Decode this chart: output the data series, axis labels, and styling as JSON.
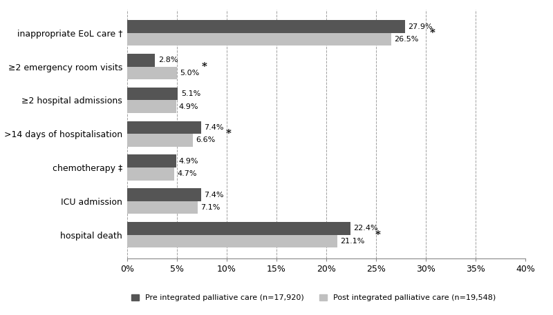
{
  "categories": [
    "hospital death",
    "ICU admission",
    "chemotherapy ‡",
    ">14 days of hospitalisation",
    "≥2 hospital admissions",
    "≥2 emergency room visits",
    "inappropriate EoL care †"
  ],
  "pre_values": [
    22.4,
    7.4,
    4.9,
    7.4,
    5.1,
    2.8,
    27.9
  ],
  "post_values": [
    21.1,
    7.1,
    4.7,
    6.6,
    4.9,
    5.0,
    26.5
  ],
  "pre_label": "Pre integrated palliative care (n=17,920)",
  "post_label": "Post integrated palliative care (n=19,548)",
  "pre_color": "#555555",
  "post_color": "#c0c0c0",
  "significant": [
    true,
    false,
    false,
    true,
    false,
    true,
    true
  ],
  "xlim": [
    0,
    40
  ],
  "xticks": [
    0,
    5,
    10,
    15,
    20,
    25,
    30,
    35,
    40
  ],
  "xticklabels": [
    "0%",
    "5%",
    "10%",
    "15%",
    "20%",
    "25%",
    "30%",
    "35%",
    "40%"
  ],
  "bar_height": 0.38,
  "figsize": [
    8.0,
    4.57
  ],
  "dpi": 100,
  "background_color": "#ffffff"
}
